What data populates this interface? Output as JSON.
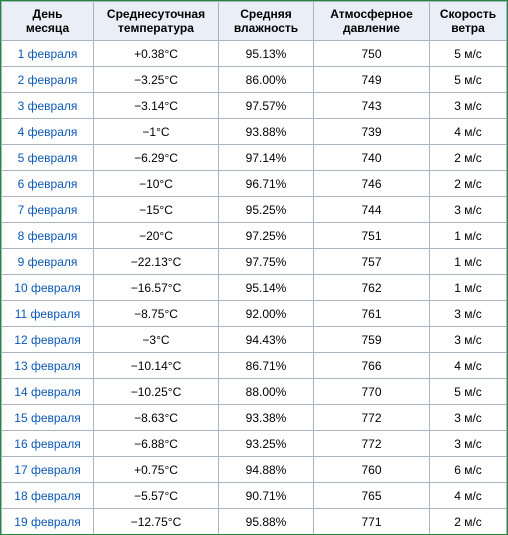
{
  "table": {
    "headers": [
      [
        "День",
        "месяца"
      ],
      [
        "Среднесуточная",
        "температура"
      ],
      [
        "Средняя",
        "влажность"
      ],
      [
        "Атмосферное",
        "давление"
      ],
      [
        "Скорость",
        "ветра"
      ]
    ],
    "rows": [
      [
        "1 февраля",
        "+0.38°C",
        "95.13%",
        "750",
        "5 м/с"
      ],
      [
        "2 февраля",
        "−3.25°C",
        "86.00%",
        "749",
        "5 м/с"
      ],
      [
        "3 февраля",
        "−3.14°C",
        "97.57%",
        "743",
        "3 м/с"
      ],
      [
        "4 февраля",
        "−1°C",
        "93.88%",
        "739",
        "4 м/с"
      ],
      [
        "5 февраля",
        "−6.29°C",
        "97.14%",
        "740",
        "2 м/с"
      ],
      [
        "6 февраля",
        "−10°C",
        "96.71%",
        "746",
        "2 м/с"
      ],
      [
        "7 февраля",
        "−15°C",
        "95.25%",
        "744",
        "3 м/с"
      ],
      [
        "8 февраля",
        "−20°C",
        "97.25%",
        "751",
        "1 м/с"
      ],
      [
        "9 февраля",
        "−22.13°C",
        "97.75%",
        "757",
        "1 м/с"
      ],
      [
        "10 февраля",
        "−16.57°C",
        "95.14%",
        "762",
        "1 м/с"
      ],
      [
        "11 февраля",
        "−8.75°C",
        "92.00%",
        "761",
        "3 м/с"
      ],
      [
        "12 февраля",
        "−3°C",
        "94.43%",
        "759",
        "3 м/с"
      ],
      [
        "13 февраля",
        "−10.14°C",
        "86.71%",
        "766",
        "4 м/с"
      ],
      [
        "14 февраля",
        "−10.25°C",
        "88.00%",
        "770",
        "5 м/с"
      ],
      [
        "15 февраля",
        "−8.63°C",
        "93.38%",
        "772",
        "3 м/с"
      ],
      [
        "16 февраля",
        "−6.88°C",
        "93.25%",
        "772",
        "3 м/с"
      ],
      [
        "17 февраля",
        "+0.75°C",
        "94.88%",
        "760",
        "6 м/с"
      ],
      [
        "18 февраля",
        "−5.57°C",
        "90.71%",
        "765",
        "4 м/с"
      ],
      [
        "19 февраля",
        "−12.75°C",
        "95.88%",
        "771",
        "2 м/с"
      ]
    ]
  },
  "colors": {
    "header_bg": "#eaeef6",
    "grid_border": "#a8b4c2",
    "link": "#0b58b5",
    "frame_border": "#1f8a3a"
  }
}
